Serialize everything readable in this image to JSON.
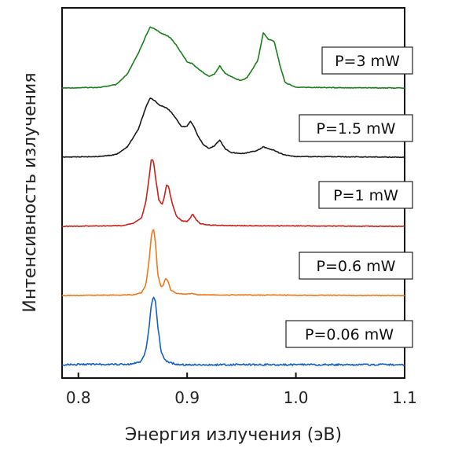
{
  "chart_data": {
    "type": "line",
    "xlabel": "Энергия излучения (эВ)",
    "ylabel": "Интенсивность излучения",
    "xlim": [
      0.785,
      1.1
    ],
    "xticks": [
      0.8,
      0.9,
      1.0,
      1.1
    ],
    "xtick_labels": [
      "0.8",
      "0.9",
      "1.0",
      "1.1"
    ],
    "yticks_shown": false,
    "stacked_offsets": true,
    "grid": false,
    "series": [
      {
        "name": "P=3 mW",
        "color": "#1a7f1a",
        "baseline_level": 4.0,
        "x": [
          0.785,
          0.82,
          0.835,
          0.845,
          0.855,
          0.862,
          0.866,
          0.87,
          0.875,
          0.88,
          0.885,
          0.89,
          0.895,
          0.9,
          0.905,
          0.91,
          0.915,
          0.92,
          0.925,
          0.93,
          0.935,
          0.94,
          0.945,
          0.95,
          0.955,
          0.96,
          0.965,
          0.97,
          0.975,
          0.98,
          0.985,
          0.99,
          1.0,
          1.1
        ],
        "y": [
          4.0,
          4.01,
          4.05,
          4.2,
          4.5,
          4.75,
          4.88,
          4.86,
          4.8,
          4.77,
          4.72,
          4.62,
          4.5,
          4.38,
          4.35,
          4.28,
          4.22,
          4.17,
          4.2,
          4.32,
          4.21,
          4.17,
          4.13,
          4.11,
          4.15,
          4.27,
          4.4,
          4.8,
          4.7,
          4.68,
          4.35,
          4.08,
          4.01,
          4.0
        ]
      },
      {
        "name": "P=1.5 mW",
        "color": "#1a1a1a",
        "baseline_level": 3.0,
        "x": [
          0.785,
          0.82,
          0.835,
          0.845,
          0.855,
          0.862,
          0.866,
          0.87,
          0.875,
          0.88,
          0.885,
          0.89,
          0.895,
          0.9,
          0.903,
          0.907,
          0.91,
          0.915,
          0.92,
          0.925,
          0.93,
          0.935,
          0.94,
          0.95,
          0.96,
          0.965,
          0.97,
          0.975,
          0.98,
          0.985,
          0.99,
          1.0,
          1.1
        ],
        "y": [
          3.0,
          3.01,
          3.04,
          3.15,
          3.4,
          3.72,
          3.86,
          3.82,
          3.75,
          3.72,
          3.66,
          3.55,
          3.44,
          3.45,
          3.52,
          3.42,
          3.3,
          3.18,
          3.13,
          3.16,
          3.25,
          3.12,
          3.07,
          3.05,
          3.08,
          3.1,
          3.15,
          3.12,
          3.1,
          3.06,
          3.03,
          3.01,
          3.0
        ]
      },
      {
        "name": "P=1 mW",
        "color": "#c8201a",
        "baseline_level": 2.0,
        "x": [
          0.785,
          0.84,
          0.85,
          0.858,
          0.862,
          0.865,
          0.867,
          0.869,
          0.871,
          0.874,
          0.877,
          0.879,
          0.881,
          0.883,
          0.886,
          0.89,
          0.895,
          0.9,
          0.903,
          0.905,
          0.908,
          0.912,
          0.92,
          0.94,
          1.1
        ],
        "y": [
          2.0,
          2.01,
          2.04,
          2.12,
          2.35,
          2.7,
          2.97,
          2.95,
          2.7,
          2.38,
          2.32,
          2.42,
          2.6,
          2.57,
          2.35,
          2.15,
          2.08,
          2.07,
          2.12,
          2.18,
          2.1,
          2.04,
          2.02,
          2.01,
          2.0
        ]
      },
      {
        "name": "P=0.6 mW",
        "color": "#f07818",
        "baseline_level": 1.0,
        "x": [
          0.785,
          0.85,
          0.858,
          0.862,
          0.865,
          0.867,
          0.869,
          0.871,
          0.873,
          0.876,
          0.878,
          0.88,
          0.882,
          0.885,
          0.89,
          0.9,
          0.905,
          0.91,
          1.1
        ],
        "y": [
          1.0,
          1.01,
          1.04,
          1.15,
          1.5,
          1.85,
          1.98,
          1.75,
          1.3,
          1.12,
          1.15,
          1.25,
          1.22,
          1.08,
          1.03,
          1.02,
          1.03,
          1.01,
          1.0
        ]
      },
      {
        "name": "P=0.06 mW",
        "color": "#1560c8",
        "baseline_level": 0.0,
        "x": [
          0.785,
          0.85,
          0.858,
          0.862,
          0.865,
          0.867,
          0.869,
          0.871,
          0.873,
          0.876,
          0.879,
          0.883,
          0.89,
          0.9,
          1.1
        ],
        "y": [
          0.0,
          0.01,
          0.05,
          0.2,
          0.55,
          0.85,
          0.98,
          0.9,
          0.55,
          0.2,
          0.07,
          0.03,
          0.01,
          0.0,
          0.0
        ]
      }
    ]
  }
}
